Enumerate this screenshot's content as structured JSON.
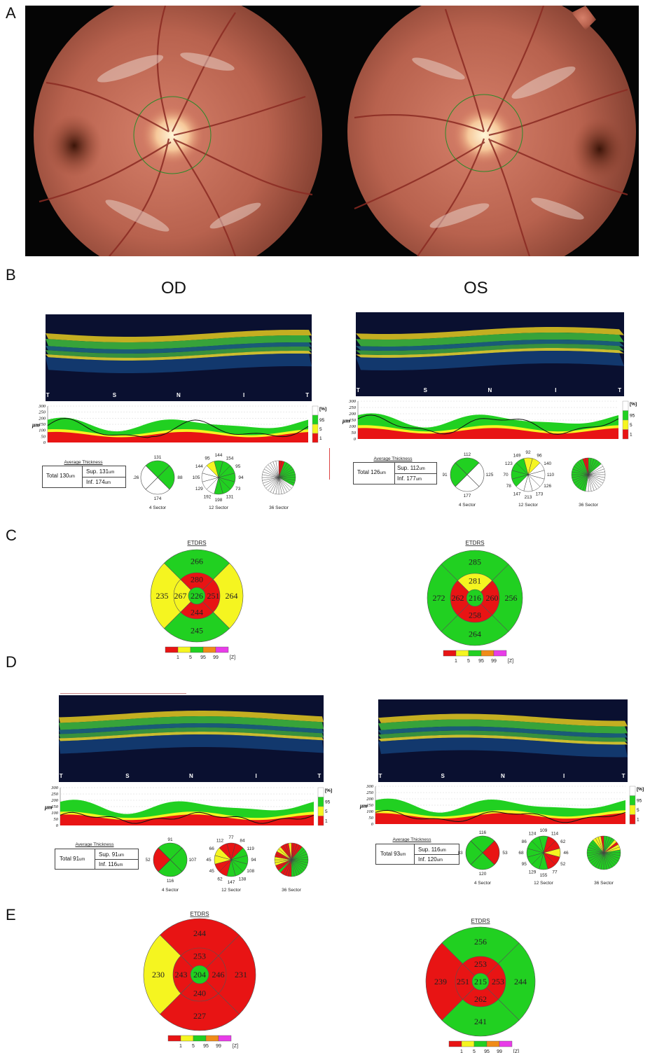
{
  "panels": {
    "A": "A",
    "B": "B",
    "C": "C",
    "D": "D",
    "E": "E"
  },
  "eyes": {
    "od": "OD",
    "os": "OS"
  },
  "oct_ticks": [
    "T",
    "S",
    "N",
    "I",
    "T"
  ],
  "y_axis": [
    "300",
    "250",
    "200",
    "150",
    "100",
    "50",
    "0"
  ],
  "y_unit": "μm",
  "percent_scale": {
    "title": "[%]",
    "labels": [
      "95",
      "5",
      "1"
    ]
  },
  "avg_title": "Average Thickness",
  "sector_labels": {
    "s4": "4 Sector",
    "s12": "12 Sector",
    "s36": "36 Sector"
  },
  "etdrs_title": "ETDRS",
  "z_legend": {
    "labels": [
      "1",
      "5",
      "95",
      "99"
    ],
    "unit": "[Z]"
  },
  "colors": {
    "green": "#21d021",
    "yellow": "#f5f520",
    "red": "#e81414",
    "orange": "#f08c18",
    "magenta": "#e83ce8",
    "white": "#ffffff"
  },
  "B": {
    "od": {
      "avg": {
        "total_label": "Total",
        "total": "130",
        "total_unit": "um",
        "sup_label": "Sup.",
        "sup": "131",
        "sup_unit": "um",
        "inf_label": "Inf.",
        "inf": "174",
        "inf_unit": "um"
      },
      "s4": {
        "labels": [
          "131",
          "88",
          "174",
          "126"
        ]
      },
      "s12": {
        "labels": [
          "144",
          "154",
          "95",
          "94",
          "73",
          "131",
          "198",
          "192",
          "129",
          "105",
          "144",
          "95"
        ]
      }
    },
    "os": {
      "avg": {
        "total_label": "Total",
        "total": "126",
        "total_unit": "um",
        "sup_label": "Sup.",
        "sup": "112",
        "sup_unit": "um",
        "inf_label": "Inf.",
        "inf": "177",
        "inf_unit": "um"
      },
      "s4": {
        "labels": [
          "112",
          "125",
          "177",
          "91"
        ]
      },
      "s12": {
        "labels": [
          "92",
          "96",
          "140",
          "110",
          "126",
          "173",
          "213",
          "147",
          "78",
          "70",
          "123",
          "149"
        ]
      }
    }
  },
  "C": {
    "od": {
      "outer": {
        "top": "266",
        "right": "264",
        "bottom": "245",
        "left": "235"
      },
      "inner": {
        "top": "280",
        "right": "251",
        "bottom": "244",
        "left": "267"
      },
      "center": "226"
    },
    "os": {
      "outer": {
        "top": "285",
        "right": "256",
        "bottom": "264",
        "left": "272"
      },
      "inner": {
        "top": "281",
        "right": "260",
        "bottom": "258",
        "left": "262"
      },
      "center": "216"
    }
  },
  "D": {
    "od": {
      "avg": {
        "total_label": "Total",
        "total": "91",
        "total_unit": "um",
        "sup_label": "Sup.",
        "sup": "91",
        "sup_unit": "um",
        "inf_label": "Inf.",
        "inf": "116",
        "inf_unit": "um"
      },
      "s4": {
        "labels": [
          "91",
          "107",
          "116",
          "52"
        ]
      },
      "s12": {
        "labels": [
          "77",
          "84",
          "119",
          "94",
          "108",
          "138",
          "147",
          "62",
          "45",
          "45",
          "66",
          "112"
        ]
      }
    },
    "os": {
      "avg": {
        "total_label": "Total",
        "total": "93",
        "total_unit": "um",
        "sup_label": "Sup.",
        "sup": "116",
        "sup_unit": "um",
        "inf_label": "Inf.",
        "inf": "120",
        "inf_unit": "um"
      },
      "s4": {
        "labels": [
          "116",
          "53",
          "120",
          "83"
        ]
      },
      "s12": {
        "labels": [
          "109",
          "114",
          "62",
          "46",
          "52",
          "77",
          "155",
          "129",
          "95",
          "68",
          "86",
          "124"
        ]
      }
    }
  },
  "E": {
    "od": {
      "outer": {
        "top": "244",
        "right": "231",
        "bottom": "227",
        "left": "230"
      },
      "inner": {
        "top": "253",
        "right": "246",
        "bottom": "240",
        "left": "243"
      },
      "center": "204"
    },
    "os": {
      "outer": {
        "top": "256",
        "right": "244",
        "bottom": "241",
        "left": "239"
      },
      "inner": {
        "top": "253",
        "right": "253",
        "bottom": "262",
        "left": "251"
      },
      "center": "215"
    }
  }
}
